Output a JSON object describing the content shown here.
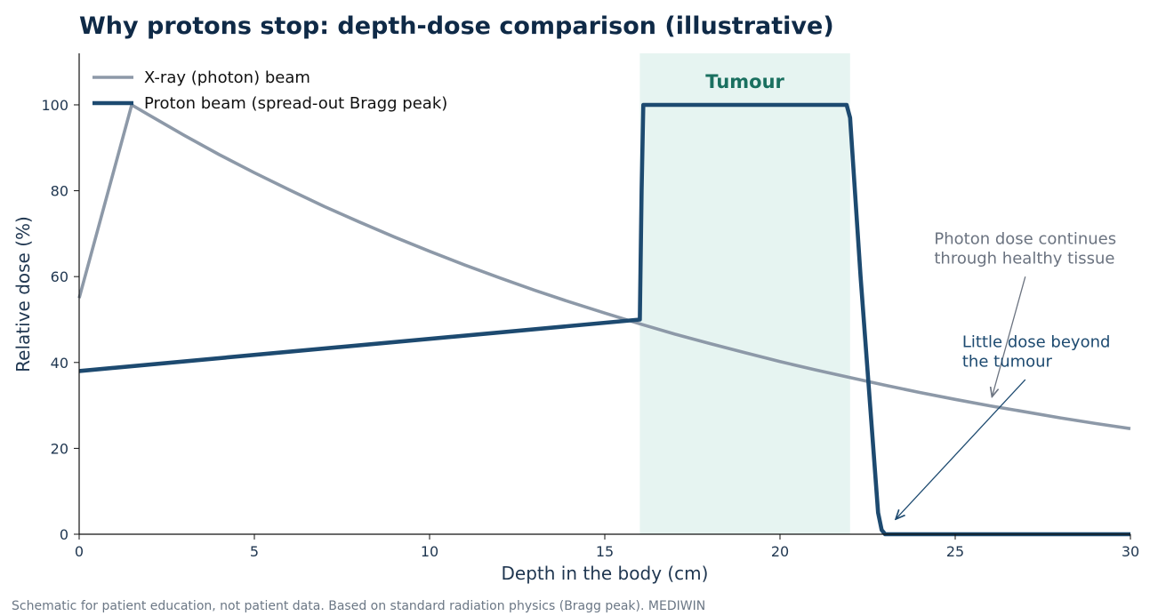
{
  "colors": {
    "photon": "#8d99a8",
    "proton": "#1d4a70",
    "band_fill": "#e6f4f1",
    "band_label": "#1a7060",
    "title": "#0f2a47",
    "axis": "#1f3650",
    "annot_photon": "#6b7380",
    "annot_proton": "#1d4a70",
    "footer": "#6b7785"
  },
  "footer": "Schematic for patient education, not patient data. Based on standard radiation physics (Bragg peak). MEDIWIN",
  "chart_data": {
    "type": "line",
    "title": "Why protons stop: depth-dose comparison (illustrative)",
    "xlabel": "Depth in the body (cm)",
    "ylabel": "Relative dose (%)",
    "xlim": [
      0,
      30
    ],
    "ylim": [
      0,
      112
    ],
    "xticks": [
      0,
      5,
      10,
      15,
      20,
      25,
      30
    ],
    "yticks": [
      0,
      20,
      40,
      60,
      80,
      100
    ],
    "grid": false,
    "legend_position": "top-left",
    "series": [
      {
        "name": "X-ray (photon) beam",
        "color_key": "photon",
        "x": [
          0,
          1.5,
          2,
          3,
          4,
          5,
          6,
          7,
          8,
          9,
          10,
          11,
          12,
          13,
          14,
          15,
          16,
          17,
          18,
          19,
          20,
          21,
          22,
          23,
          24,
          25,
          26,
          27,
          28,
          29,
          30
        ],
        "y": [
          55,
          100,
          97.6,
          92.9,
          88.4,
          84.2,
          80.2,
          76.3,
          72.7,
          69.2,
          65.9,
          62.7,
          59.7,
          56.8,
          54.1,
          51.5,
          49.0,
          46.6,
          44.4,
          42.3,
          40.2,
          38.3,
          36.5,
          34.7,
          33.0,
          31.4,
          29.9,
          28.5,
          27.1,
          25.8,
          24.6
        ]
      },
      {
        "name": "Proton beam (spread-out Bragg peak)",
        "color_key": "proton",
        "x": [
          0,
          16,
          16.05,
          16.1,
          21.9,
          22.0,
          22.3,
          22.8,
          22.9,
          23.0,
          30
        ],
        "y": [
          38,
          50,
          80,
          100,
          100,
          97,
          60,
          5,
          1,
          0,
          0
        ]
      }
    ],
    "bands": [
      {
        "label": "Tumour",
        "x0": 16,
        "x1": 22
      }
    ],
    "annotations": [
      {
        "lines": [
          "Photon dose continues",
          "through healthy tissue"
        ],
        "color_key": "annot_photon",
        "text_x": 24.4,
        "text_y": 63,
        "arrow_from": [
          27.0,
          60
        ],
        "arrow_to": [
          26.05,
          32
        ]
      },
      {
        "lines": [
          "Little dose beyond",
          "the tumour"
        ],
        "color_key": "annot_proton",
        "text_x": 25.2,
        "text_y": 39,
        "arrow_from": [
          27.0,
          36
        ],
        "arrow_to": [
          23.3,
          3.5
        ]
      }
    ]
  }
}
